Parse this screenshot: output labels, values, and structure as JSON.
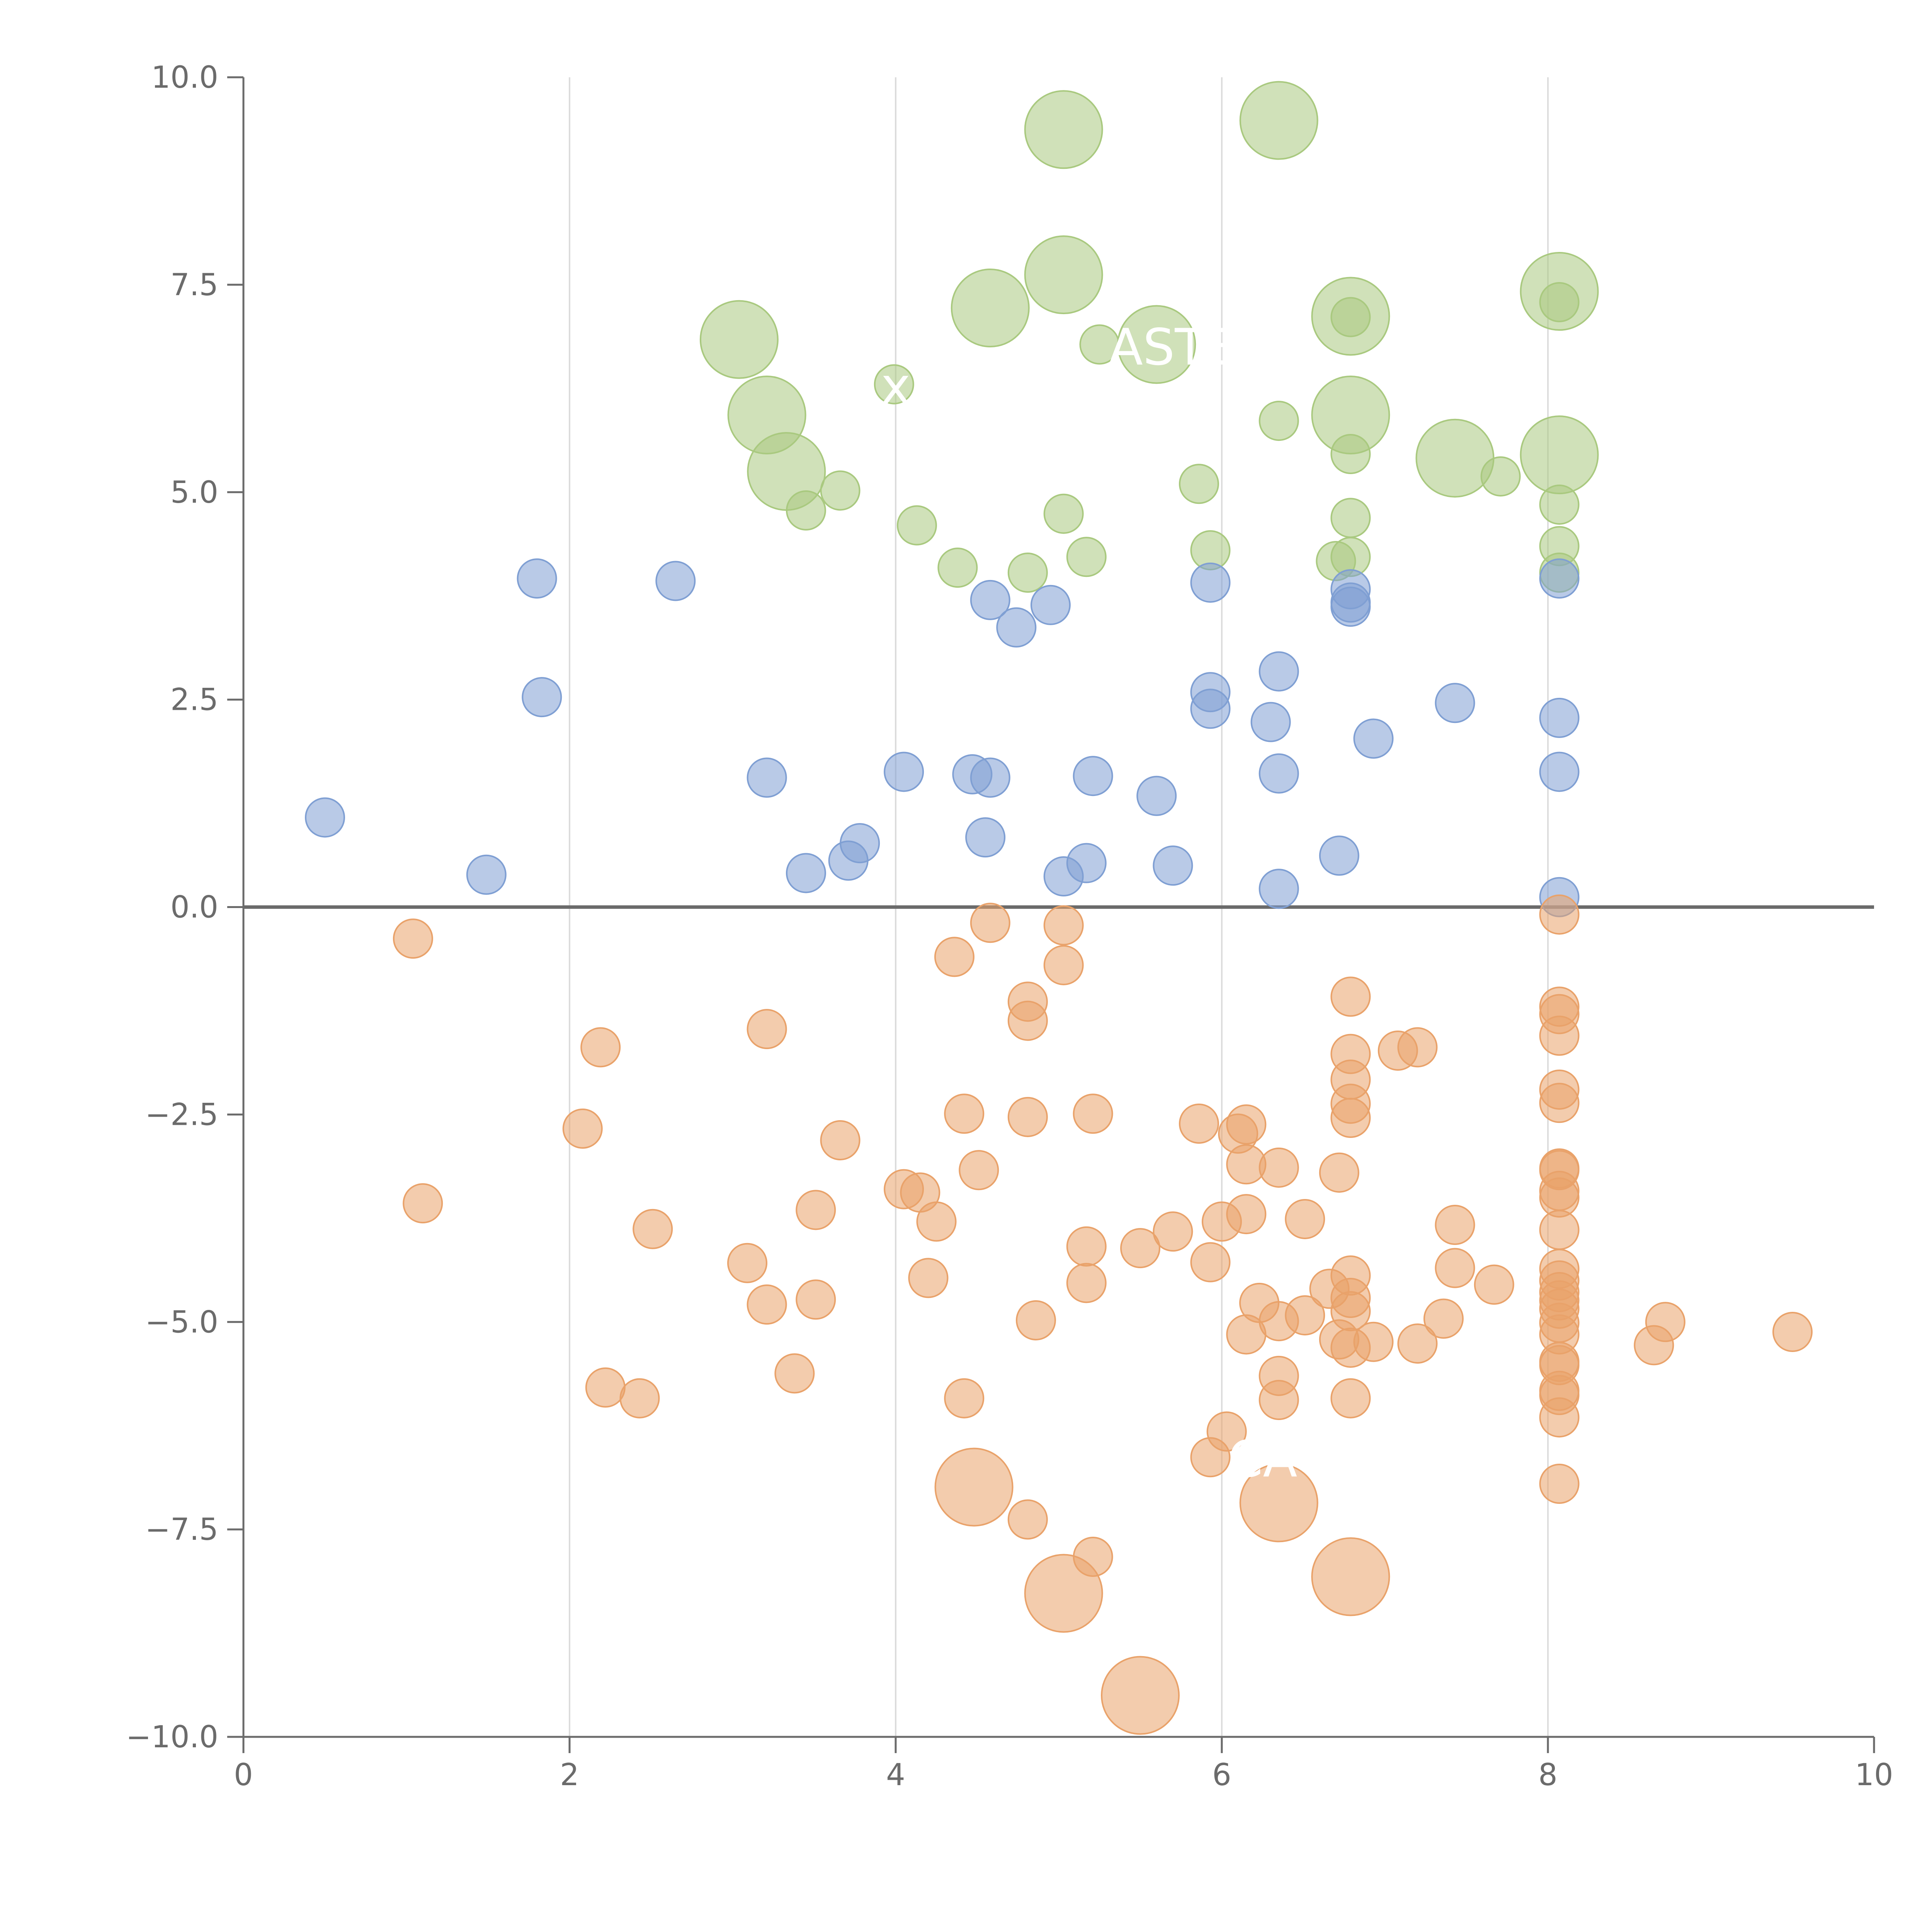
{
  "chart_data": {
    "type": "scatter",
    "title": "",
    "xlabel": "",
    "ylabel": "",
    "xlim": [
      0,
      10
    ],
    "ylim": [
      -10,
      10
    ],
    "x_ticks": [
      "0",
      "2",
      "4",
      "6",
      "8",
      "10"
    ],
    "y_ticks": [
      "10.0",
      "7.5",
      "5.0",
      "2.5",
      "0.0",
      "−2.5",
      "−5.0",
      "−7.5",
      "−10.0"
    ],
    "vertical_gridlines_at": [
      2,
      4,
      6,
      8
    ],
    "reference_line_y": 0,
    "colors": {
      "green": "#a9c97f",
      "blue": "#7f9fd3",
      "orange": "#e9a26a",
      "axis": "#6b6b6b",
      "grid": "#dcdcdc",
      "annotation": "#ffffff"
    },
    "series": [
      {
        "name": "green",
        "points": [
          [
            5.03,
            9.37,
            2
          ],
          [
            6.35,
            9.48,
            2
          ],
          [
            5.03,
            7.62,
            2
          ],
          [
            4.58,
            7.22,
            2
          ],
          [
            3.04,
            6.84,
            2
          ],
          [
            8.07,
            7.42,
            2
          ],
          [
            6.79,
            7.12,
            2
          ],
          [
            8.07,
            7.29,
            0
          ],
          [
            6.79,
            7.11,
            0
          ],
          [
            5.25,
            6.78,
            0
          ],
          [
            5.6,
            6.78,
            2
          ],
          [
            3.99,
            6.3,
            0
          ],
          [
            3.21,
            5.93,
            2
          ],
          [
            6.79,
            5.93,
            2
          ],
          [
            3.33,
            5.25,
            2
          ],
          [
            7.43,
            5.41,
            2
          ],
          [
            8.07,
            5.45,
            2
          ],
          [
            6.35,
            5.86,
            0
          ],
          [
            6.79,
            5.46,
            0
          ],
          [
            7.71,
            5.19,
            0
          ],
          [
            3.66,
            5.02,
            0
          ],
          [
            5.86,
            5.1,
            0
          ],
          [
            3.45,
            4.78,
            0
          ],
          [
            5.03,
            4.74,
            0
          ],
          [
            8.07,
            4.85,
            0
          ],
          [
            4.13,
            4.6,
            0
          ],
          [
            6.79,
            4.69,
            0
          ],
          [
            5.93,
            4.3,
            0
          ],
          [
            8.07,
            4.35,
            0
          ],
          [
            6.7,
            4.17,
            0
          ],
          [
            6.79,
            4.22,
            0
          ],
          [
            4.81,
            4.03,
            0
          ],
          [
            4.38,
            4.09,
            0
          ],
          [
            5.17,
            4.22,
            0
          ],
          [
            8.07,
            4.03,
            0
          ]
        ]
      },
      {
        "name": "blue",
        "points": [
          [
            1.8,
            3.96,
            0
          ],
          [
            2.65,
            3.93,
            0
          ],
          [
            1.83,
            2.53,
            0
          ],
          [
            0.5,
            1.08,
            0
          ],
          [
            1.49,
            0.39,
            0
          ],
          [
            3.21,
            1.56,
            0
          ],
          [
            3.45,
            0.41,
            0
          ],
          [
            3.71,
            0.56,
            0
          ],
          [
            3.78,
            0.77,
            0
          ],
          [
            4.05,
            1.63,
            0
          ],
          [
            4.47,
            1.6,
            0
          ],
          [
            4.58,
            1.56,
            0
          ],
          [
            4.55,
            0.84,
            0
          ],
          [
            4.58,
            3.7,
            0
          ],
          [
            4.74,
            3.37,
            0
          ],
          [
            4.95,
            3.64,
            0
          ],
          [
            5.03,
            0.37,
            0
          ],
          [
            5.17,
            0.53,
            0
          ],
          [
            5.21,
            1.58,
            0
          ],
          [
            5.6,
            1.34,
            0
          ],
          [
            5.7,
            0.5,
            0
          ],
          [
            5.93,
            3.91,
            0
          ],
          [
            5.93,
            2.59,
            0
          ],
          [
            5.93,
            2.39,
            0
          ],
          [
            6.3,
            2.23,
            0
          ],
          [
            6.35,
            2.84,
            0
          ],
          [
            6.35,
            1.61,
            0
          ],
          [
            6.35,
            0.22,
            0
          ],
          [
            6.72,
            0.62,
            0
          ],
          [
            6.79,
            3.83,
            0
          ],
          [
            6.79,
            3.67,
            0
          ],
          [
            6.79,
            3.62,
            0
          ],
          [
            6.93,
            2.03,
            0
          ],
          [
            7.43,
            2.46,
            0
          ],
          [
            8.07,
            3.96,
            0
          ],
          [
            8.07,
            2.28,
            0
          ],
          [
            8.07,
            1.63,
            0
          ],
          [
            8.07,
            0.12,
            0
          ]
        ]
      },
      {
        "name": "orange",
        "points": [
          [
            1.04,
            -0.38,
            0
          ],
          [
            2.19,
            -1.69,
            0
          ],
          [
            3.21,
            -1.47,
            0
          ],
          [
            2.08,
            -2.67,
            0
          ],
          [
            1.1,
            -3.57,
            0
          ],
          [
            2.51,
            -3.88,
            0
          ],
          [
            3.66,
            -2.81,
            0
          ],
          [
            3.51,
            -3.65,
            0
          ],
          [
            3.09,
            -4.29,
            0
          ],
          [
            3.21,
            -4.79,
            0
          ],
          [
            3.51,
            -4.73,
            0
          ],
          [
            3.38,
            -5.62,
            0
          ],
          [
            2.22,
            -5.79,
            0
          ],
          [
            2.43,
            -5.92,
            0
          ],
          [
            4.05,
            -3.4,
            0
          ],
          [
            4.15,
            -3.44,
            0
          ],
          [
            4.25,
            -3.79,
            0
          ],
          [
            4.2,
            -4.47,
            0
          ],
          [
            4.42,
            -2.49,
            0
          ],
          [
            4.51,
            -3.17,
            0
          ],
          [
            4.36,
            -0.6,
            0
          ],
          [
            4.58,
            -0.19,
            0
          ],
          [
            4.81,
            -1.14,
            0
          ],
          [
            4.81,
            -1.37,
            0
          ],
          [
            4.81,
            -2.53,
            0
          ],
          [
            5.03,
            -0.22,
            0
          ],
          [
            5.03,
            -0.7,
            0
          ],
          [
            5.21,
            -2.49,
            0
          ],
          [
            4.86,
            -4.98,
            0
          ],
          [
            5.17,
            -4.09,
            0
          ],
          [
            5.17,
            -4.53,
            0
          ],
          [
            4.42,
            -5.92,
            0
          ],
          [
            4.81,
            -7.38,
            0
          ],
          [
            5.5,
            -4.11,
            0
          ],
          [
            5.7,
            -3.91,
            0
          ],
          [
            5.86,
            -2.61,
            0
          ],
          [
            6.1,
            -2.73,
            0
          ],
          [
            6.15,
            -2.62,
            0
          ],
          [
            6.15,
            -3.1,
            0
          ],
          [
            6.0,
            -3.79,
            0
          ],
          [
            6.15,
            -3.7,
            0
          ],
          [
            5.93,
            -4.28,
            0
          ],
          [
            6.35,
            -3.14,
            0
          ],
          [
            6.51,
            -3.76,
            0
          ],
          [
            6.23,
            -4.77,
            0
          ],
          [
            6.35,
            -4.99,
            0
          ],
          [
            6.15,
            -5.15,
            0
          ],
          [
            6.51,
            -4.92,
            0
          ],
          [
            6.35,
            -5.65,
            0
          ],
          [
            6.35,
            -5.94,
            0
          ],
          [
            6.03,
            -6.32,
            0
          ],
          [
            5.93,
            -6.63,
            0
          ],
          [
            6.79,
            -1.08,
            0
          ],
          [
            6.79,
            -1.77,
            0
          ],
          [
            6.79,
            -2.08,
            0
          ],
          [
            6.79,
            -2.37,
            0
          ],
          [
            6.79,
            -2.54,
            0
          ],
          [
            6.72,
            -3.2,
            0
          ],
          [
            6.79,
            -4.44,
            0
          ],
          [
            6.66,
            -4.6,
            0
          ],
          [
            6.79,
            -4.71,
            0
          ],
          [
            6.79,
            -4.87,
            0
          ],
          [
            6.72,
            -5.21,
            0
          ],
          [
            6.79,
            -5.31,
            0
          ],
          [
            6.79,
            -5.92,
            0
          ],
          [
            6.93,
            -5.24,
            0
          ],
          [
            7.08,
            -1.73,
            0
          ],
          [
            7.2,
            -1.69,
            0
          ],
          [
            7.43,
            -3.83,
            0
          ],
          [
            7.43,
            -4.35,
            0
          ],
          [
            7.67,
            -4.55,
            0
          ],
          [
            7.36,
            -4.96,
            0
          ],
          [
            7.2,
            -5.26,
            0
          ],
          [
            8.07,
            -0.09,
            0
          ],
          [
            8.07,
            -1.2,
            0
          ],
          [
            8.07,
            -1.29,
            0
          ],
          [
            8.07,
            -1.55,
            0
          ],
          [
            8.07,
            -2.2,
            0
          ],
          [
            8.07,
            -2.36,
            0
          ],
          [
            8.07,
            -3.15,
            0
          ],
          [
            8.07,
            -3.17,
            0
          ],
          [
            8.07,
            -3.42,
            0
          ],
          [
            8.07,
            -3.5,
            0
          ],
          [
            8.07,
            -3.89,
            0
          ],
          [
            8.07,
            -4.36,
            0
          ],
          [
            8.07,
            -4.5,
            0
          ],
          [
            8.07,
            -4.64,
            0
          ],
          [
            8.07,
            -4.74,
            0
          ],
          [
            8.07,
            -4.84,
            0
          ],
          [
            8.07,
            -5.01,
            0
          ],
          [
            8.07,
            -5.15,
            0
          ],
          [
            8.07,
            -5.48,
            0
          ],
          [
            8.07,
            -5.52,
            0
          ],
          [
            8.07,
            -5.83,
            0
          ],
          [
            8.07,
            -5.88,
            0
          ],
          [
            8.07,
            -6.15,
            0
          ],
          [
            8.07,
            -6.95,
            0
          ],
          [
            8.72,
            -5.0,
            0
          ],
          [
            8.65,
            -5.28,
            0
          ],
          [
            9.5,
            -5.12,
            0
          ],
          [
            4.48,
            -6.99,
            2
          ],
          [
            6.35,
            -7.18,
            2
          ],
          [
            6.79,
            -8.07,
            2
          ],
          [
            5.03,
            -8.27,
            2
          ],
          [
            5.5,
            -9.5,
            2
          ],
          [
            5.21,
            -7.83,
            0
          ]
        ]
      }
    ],
    "annotations": [
      "ASTE",
      "CA",
      "x"
    ]
  }
}
